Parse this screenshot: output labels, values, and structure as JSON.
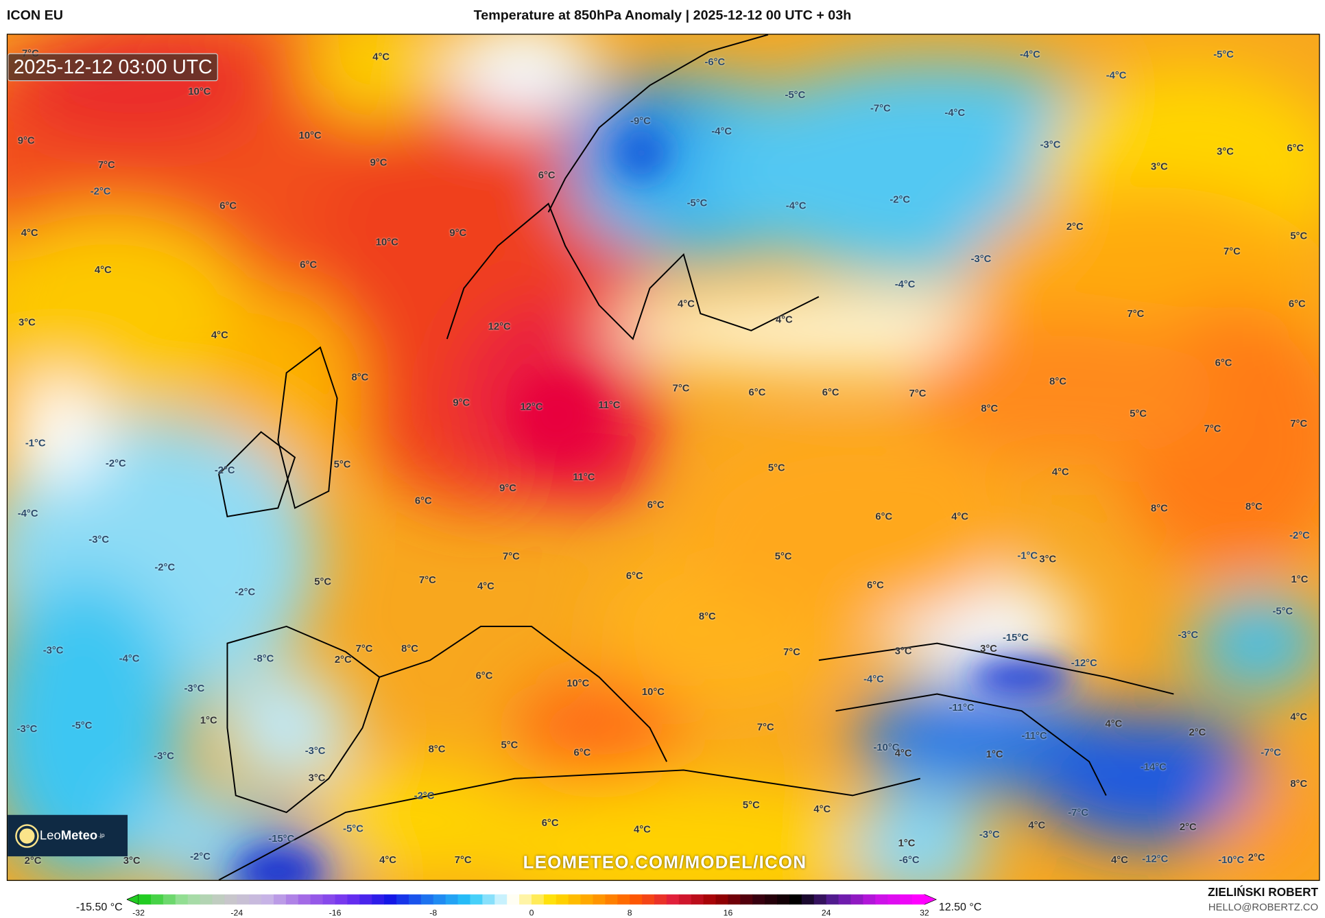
{
  "header": {
    "model": "ICON EU",
    "title": "Temperature at 850hPa Anomaly | 2025-12-12 00 UTC + 03h"
  },
  "map": {
    "timestamp": "2025-12-12 03:00 UTC",
    "watermark": "LEOMETEO.COM/MODEL/ICON",
    "logo": {
      "text_a": "Leo",
      "text_b": "Meteo",
      "suffix": ".jp"
    },
    "labels": [
      "4°C",
      "-6°C",
      "-5°C",
      "-7°C",
      "-4°C",
      "-4°C",
      "-5°C",
      "-4°C",
      "7°C",
      "10°C",
      "9°C",
      "10°C",
      "7°C",
      "9°C",
      "-9°C",
      "-4°C",
      "-3°C",
      "3°C",
      "6°C",
      "3°C",
      "6°C",
      "-2°C",
      "6°C",
      "-5°C",
      "-4°C",
      "-2°C",
      "2°C",
      "5°C",
      "4°C",
      "9°C",
      "10°C",
      "7°C",
      "4°C",
      "6°C",
      "-3°C",
      "-4°C",
      "4°C",
      "6°C",
      "3°C",
      "12°C",
      "7°C",
      "4°C",
      "4°C",
      "6°C",
      "8°C",
      "7°C",
      "6°C",
      "6°C",
      "7°C",
      "8°C",
      "9°C",
      "12°C",
      "11°C",
      "8°C",
      "5°C",
      "7°C",
      "7°C",
      "-1°C",
      "5°C",
      "-2°C",
      "-2°C",
      "5°C",
      "4°C",
      "11°C",
      "9°C",
      "6°C",
      "6°C",
      "8°C",
      "8°C",
      "-4°C",
      "6°C",
      "4°C",
      "-3°C",
      "-2°C",
      "7°C",
      "5°C",
      "-1°C",
      "3°C",
      "-2°C",
      "7°C",
      "5°C",
      "6°C",
      "4°C",
      "6°C",
      "1°C",
      "-2°C",
      "-5°C",
      "8°C",
      "-3°C",
      "-15°C",
      "-3°C",
      "7°C",
      "8°C",
      "7°C",
      "3°C",
      "3°C",
      "-8°C",
      "2°C",
      "-4°C",
      "-12°C",
      "6°C",
      "-4°C",
      "10°C",
      "-3°C",
      "10°C",
      "-11°C",
      "4°C",
      "-3°C",
      "-5°C",
      "1°C",
      "7°C",
      "4°C",
      "2°C",
      "-11°C",
      "-3°C",
      "-3°C",
      "8°C",
      "5°C",
      "6°C",
      "-10°C",
      "4°C",
      "1°C",
      "-7°C",
      "3°C",
      "-14°C",
      "-2°C",
      "8°C",
      "5°C",
      "4°C",
      "-7°C",
      "6°C",
      "4°C",
      "4°C",
      "2°C",
      "-5°C",
      "-15°C",
      "-3°C",
      "2°C",
      "3°C",
      "-2°C",
      "4°C",
      "7°C",
      "1°C",
      "-6°C",
      "4°C",
      "-12°C",
      "-10°C",
      "2°C"
    ]
  },
  "colorbar": {
    "min_label": "-15.50 °C",
    "max_label": "12.50 °C",
    "ticks": [
      "-32",
      "-24",
      "-16",
      "-8",
      "0",
      "8",
      "16",
      "24",
      "32"
    ],
    "range": [
      -32,
      32
    ],
    "stops": [
      "#22cc22",
      "#9ee09e",
      "#c8c8c8",
      "#c8b4e6",
      "#a064e6",
      "#7030f0",
      "#1414e6",
      "#1e78f0",
      "#28c8f8",
      "#ffffff",
      "#ffe000",
      "#ffa000",
      "#ff5a00",
      "#e01e3c",
      "#a00000",
      "#3c0010",
      "#000000",
      "#5a1ea0",
      "#c814e6",
      "#ff00ff"
    ]
  },
  "author": {
    "name": "ZIELIŃSKI ROBERT",
    "email": "HELLO@ROBERTZ.CO"
  }
}
